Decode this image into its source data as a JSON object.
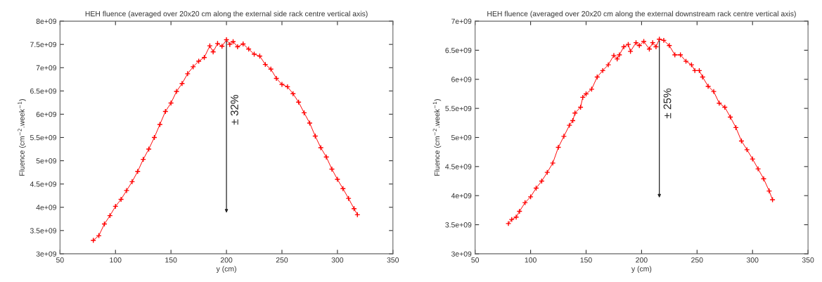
{
  "chart_data": [
    {
      "type": "line",
      "title": "HEH fluence (averaged over 20x20 cm along the external side rack centre vertical axis)",
      "xlabel": "y (cm)",
      "ylabel": "Fluence (cm$^{−2}$.week$^{−1}$)",
      "x": [
        80,
        85,
        90,
        95,
        100,
        105,
        110,
        115,
        120,
        125,
        130,
        135,
        140,
        145,
        150,
        155,
        160,
        165,
        170,
        175,
        180,
        185,
        188,
        192,
        196,
        200,
        203,
        206,
        210,
        215,
        220,
        225,
        230,
        235,
        240,
        245,
        250,
        255,
        260,
        265,
        270,
        275,
        280,
        285,
        290,
        295,
        300,
        305,
        310,
        315,
        318
      ],
      "series": [
        {
          "color": "#ff0000",
          "values": [
            3290000000.0,
            3390000000.0,
            3640000000.0,
            3820000000.0,
            4020000000.0,
            4170000000.0,
            4360000000.0,
            4550000000.0,
            4770000000.0,
            5030000000.0,
            5250000000.0,
            5500000000.0,
            5780000000.0,
            6060000000.0,
            6240000000.0,
            6490000000.0,
            6660000000.0,
            6870000000.0,
            7020000000.0,
            7140000000.0,
            7220000000.0,
            7470000000.0,
            7340000000.0,
            7520000000.0,
            7460000000.0,
            7600000000.0,
            7500000000.0,
            7560000000.0,
            7450000000.0,
            7510000000.0,
            7400000000.0,
            7290000000.0,
            7250000000.0,
            7070000000.0,
            6970000000.0,
            6770000000.0,
            6640000000.0,
            6590000000.0,
            6440000000.0,
            6260000000.0,
            6030000000.0,
            5810000000.0,
            5530000000.0,
            5280000000.0,
            5080000000.0,
            4820000000.0,
            4600000000.0,
            4400000000.0,
            4190000000.0,
            3970000000.0,
            3840000000.0
          ]
        }
      ],
      "marker": "cross",
      "line_style": "solid",
      "grid": false,
      "legend": false,
      "xlim": [
        50,
        350
      ],
      "xticks": [
        50,
        100,
        150,
        200,
        250,
        300,
        350
      ],
      "ylim": [
        3000000000.0,
        8000000000.0
      ],
      "yticks": [
        {
          "value": 3000000000.0,
          "label": "3e+09"
        },
        {
          "value": 3500000000.0,
          "label": "3.5e+09"
        },
        {
          "value": 4000000000.0,
          "label": "4e+09"
        },
        {
          "value": 4500000000.0,
          "label": "4.5e+09"
        },
        {
          "value": 5000000000.0,
          "label": "5e+09"
        },
        {
          "value": 5500000000.0,
          "label": "5.5e+09"
        },
        {
          "value": 6000000000.0,
          "label": "6e+09"
        },
        {
          "value": 6500000000.0,
          "label": "6.5e+09"
        },
        {
          "value": 7000000000.0,
          "label": "7e+09"
        },
        {
          "value": 7500000000.0,
          "label": "7.5e+09"
        },
        {
          "value": 8000000000.0,
          "label": "8e+09"
        }
      ],
      "annotations": [
        "± 32%"
      ]
    },
    {
      "type": "line",
      "title": "HEH fluence (averaged over 20x20 cm along the external downstream rack centre vertical axis)",
      "xlabel": "y (cm)",
      "ylabel": "Fluence (cm$^{−2}$.week$^{−1}$)",
      "x": [
        80,
        83,
        87,
        90,
        95,
        100,
        105,
        110,
        115,
        120,
        125,
        130,
        135,
        138,
        140,
        145,
        147,
        150,
        155,
        160,
        165,
        170,
        175,
        178,
        180,
        184,
        188,
        190,
        195,
        198,
        202,
        207,
        210,
        213,
        216,
        220,
        225,
        230,
        235,
        240,
        245,
        248,
        252,
        255,
        260,
        265,
        270,
        275,
        280,
        285,
        290,
        295,
        300,
        305,
        310,
        315,
        318
      ],
      "series": [
        {
          "color": "#ff0000",
          "values": [
            3520000000.0,
            3590000000.0,
            3630000000.0,
            3730000000.0,
            3880000000.0,
            3980000000.0,
            4130000000.0,
            4250000000.0,
            4400000000.0,
            4560000000.0,
            4830000000.0,
            5020000000.0,
            5210000000.0,
            5290000000.0,
            5420000000.0,
            5520000000.0,
            5690000000.0,
            5750000000.0,
            5830000000.0,
            6040000000.0,
            6150000000.0,
            6250000000.0,
            6410000000.0,
            6350000000.0,
            6420000000.0,
            6560000000.0,
            6600000000.0,
            6480000000.0,
            6630000000.0,
            6580000000.0,
            6650000000.0,
            6520000000.0,
            6630000000.0,
            6560000000.0,
            6690000000.0,
            6670000000.0,
            6580000000.0,
            6420000000.0,
            6420000000.0,
            6310000000.0,
            6250000000.0,
            6150000000.0,
            6150000000.0,
            6040000000.0,
            5880000000.0,
            5790000000.0,
            5590000000.0,
            5520000000.0,
            5350000000.0,
            5170000000.0,
            4940000000.0,
            4790000000.0,
            4630000000.0,
            4460000000.0,
            4290000000.0,
            4080000000.0,
            3930000000.0
          ]
        }
      ],
      "marker": "cross",
      "line_style": "solid",
      "grid": false,
      "legend": false,
      "xlim": [
        50,
        350
      ],
      "xticks": [
        50,
        100,
        150,
        200,
        250,
        300,
        350
      ],
      "ylim": [
        3000000000.0,
        7000000000.0
      ],
      "yticks": [
        {
          "value": 3000000000.0,
          "label": "3e+09"
        },
        {
          "value": 3500000000.0,
          "label": "3.5e+09"
        },
        {
          "value": 4000000000.0,
          "label": "4e+09"
        },
        {
          "value": 4500000000.0,
          "label": "4.5e+09"
        },
        {
          "value": 5000000000.0,
          "label": "5e+09"
        },
        {
          "value": 5500000000.0,
          "label": "5.5e+09"
        },
        {
          "value": 6000000000.0,
          "label": "6e+09"
        },
        {
          "value": 6500000000.0,
          "label": "6.5e+09"
        },
        {
          "value": 7000000000.0,
          "label": "7e+09"
        }
      ],
      "annotations": [
        "± 25%"
      ]
    }
  ]
}
